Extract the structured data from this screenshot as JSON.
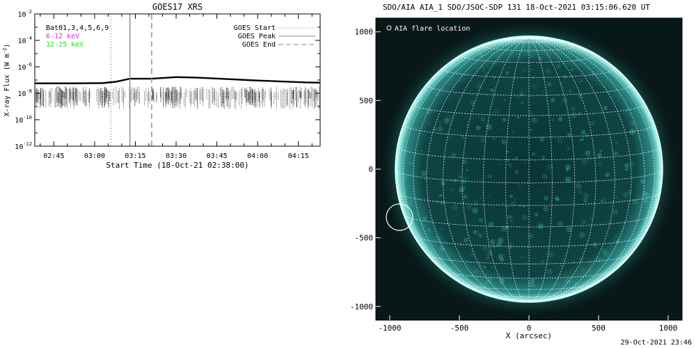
{
  "chart_data": [
    {
      "type": "line",
      "title": "GOES17 XRS",
      "xlabel": "Start Time (18-Oct-21 02:38:00)",
      "ylabel": "X-ray Flux (W m",
      "ylabel_sup": "-2",
      "ylabel_end": ")",
      "x_ticks": [
        "02:45",
        "03:00",
        "03:15",
        "03:30",
        "03:45",
        "04:00",
        "04:15"
      ],
      "x_tick_minutes": [
        7,
        22,
        37,
        52,
        67,
        82,
        97
      ],
      "xlim_minutes": [
        0,
        105
      ],
      "y_log": true,
      "ylim_exp": [
        -12,
        -2
      ],
      "y_ticks": [
        {
          "base": "10",
          "exp": "-2",
          "value": -2
        },
        {
          "base": "10",
          "exp": "-4",
          "value": -4
        },
        {
          "base": "10",
          "exp": "-6",
          "value": -6
        },
        {
          "base": "10",
          "exp": "-8",
          "value": -8
        },
        {
          "base": "10",
          "exp": "-10",
          "value": -10
        },
        {
          "base": "10",
          "exp": "-12",
          "value": -12
        }
      ],
      "annotations": [
        {
          "text": "Bat01,3,4,5,6,9",
          "color": "#000000"
        },
        {
          "text": "6-12 keV",
          "color": "#e81ee8"
        },
        {
          "text": "12-25 keV",
          "color": "#22dd22"
        }
      ],
      "legend": [
        {
          "name": "GOES Start",
          "style": "dotted",
          "minute": 28
        },
        {
          "name": "GOES Peak",
          "style": "solid",
          "minute": 35
        },
        {
          "name": "GOES End",
          "style": "dashed",
          "minute": 43
        }
      ],
      "legend_position": "top-right",
      "series": [
        {
          "name": "",
          "style": "solid",
          "x_minutes": [
            0,
            15,
            25,
            30,
            35,
            43,
            52,
            60,
            70,
            80,
            90,
            100,
            105
          ],
          "log_flux": [
            -7.25,
            -7.25,
            -7.23,
            -7.12,
            -6.9,
            -6.9,
            -6.78,
            -6.82,
            -6.92,
            -7.02,
            -7.1,
            -7.18,
            -7.2
          ]
        }
      ],
      "noise_band_log": [
        -9.2,
        -7.5
      ]
    },
    {
      "type": "image",
      "title": "SDO/AIA AIA_1 SDO/JSOC-SDP 131 18-Oct-2021 03:15:06.620 UT",
      "xlabel": "X (arcsec)",
      "xlim": [
        -1100,
        1100
      ],
      "ylim": [
        -1100,
        1100
      ],
      "x_ticks": [
        -1000,
        -500,
        0,
        500,
        1000
      ],
      "y_ticks": [
        -1000,
        -500,
        0,
        500,
        1000
      ],
      "legend_text": "AIA flare location",
      "solar_radius_arcsec": 960,
      "flare_location": {
        "x": -930,
        "y": -350,
        "radius": 95
      },
      "grid_spacing_deg": 10,
      "colors": {
        "disk": "#0d3a3a",
        "limb": "#9ef2ea",
        "grid": "#ffffff",
        "background": "#081818"
      }
    }
  ],
  "footer": {
    "timestamp": "29-Oct-2021 23:46"
  }
}
